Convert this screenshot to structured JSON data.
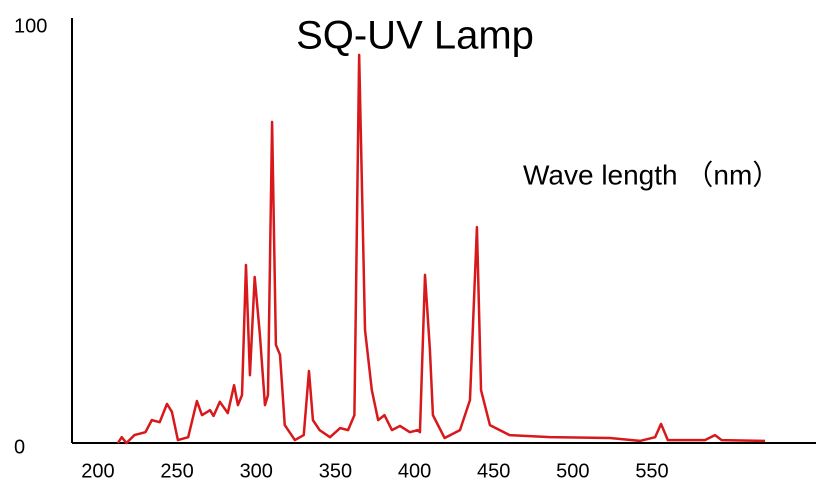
{
  "chart_data": {
    "type": "line",
    "title": "SQ-UV Lamp",
    "x_label": "Wave length （nm）",
    "x": [
      212.6,
      215,
      218,
      223,
      230,
      234,
      239,
      243.6,
      246.7,
      250.5,
      257,
      262.5,
      265.7,
      270.8,
      273,
      277,
      282,
      286,
      288.4,
      291,
      293.5,
      296,
      299,
      302.3,
      305.5,
      307.4,
      310,
      312.4,
      315,
      318,
      324.4,
      330,
      333.3,
      335.8,
      340,
      346.6,
      353,
      358,
      362,
      365,
      368.7,
      373,
      377,
      381,
      385.7,
      390.8,
      397,
      402,
      403.4,
      406.6,
      409.7,
      411.6,
      419,
      428.7,
      435,
      439.4,
      442,
      447.6,
      460,
      485.5,
      523.4,
      542.4,
      552,
      555.7,
      560,
      583.4,
      589.8,
      594,
      621.4
    ],
    "series": [
      {
        "name": "SQ-UV Lamp",
        "color": "#d7191c",
        "values": [
          0,
          1.4,
          0,
          1.9,
          2.6,
          5.5,
          5,
          9.4,
          7.5,
          0.7,
          1.4,
          10.1,
          6.7,
          7.9,
          6.5,
          9.9,
          7.2,
          13.9,
          9.1,
          11.5,
          42.8,
          16.3,
          39.9,
          26,
          9.1,
          11.5,
          77.2,
          23.6,
          21.2,
          4.3,
          0.7,
          1.9,
          17.3,
          5.5,
          3.1,
          1.4,
          3.6,
          3.1,
          6.7,
          93.3,
          27.2,
          12.7,
          5.5,
          6.7,
          3.1,
          4.1,
          2.6,
          3.1,
          2.6,
          40.4,
          22.4,
          6.7,
          1.2,
          3.1,
          10.3,
          51.9,
          12.7,
          4.3,
          1.9,
          1.4,
          1.2,
          0.5,
          1.4,
          4.6,
          0.7,
          0.7,
          1.9,
          0.7,
          0.5
        ]
      }
    ],
    "xlim": [
      183.6,
      653.6
    ],
    "xticks": [
      200,
      250,
      300,
      350,
      400,
      450,
      500,
      550
    ],
    "ylim": [
      0,
      100
    ],
    "yticks": [
      0,
      100
    ],
    "grid": false
  }
}
